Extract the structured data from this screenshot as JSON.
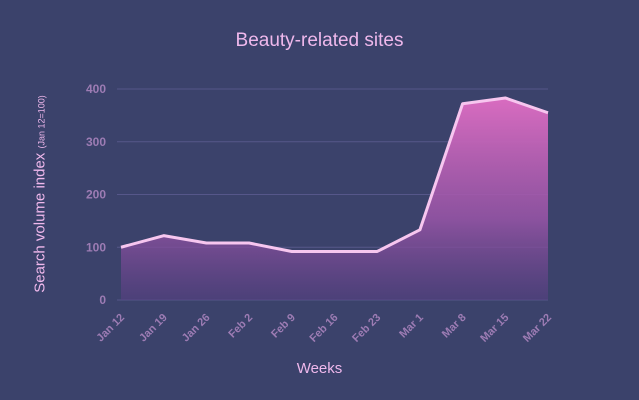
{
  "chart_data": {
    "type": "area",
    "title": "Beauty-related sites",
    "xlabel": "Weeks",
    "ylabel": "Search volume index",
    "ylabel_note": "(Jan 12=100)",
    "categories": [
      "Jan 12",
      "Jan 19",
      "Jan 26",
      "Feb 2",
      "Feb 9",
      "Feb 16",
      "Feb 23",
      "Mar 1",
      "Mar 8",
      "Mar 15",
      "Mar 22"
    ],
    "values": [
      100,
      122,
      108,
      108,
      92,
      92,
      92,
      133,
      372,
      383,
      355
    ],
    "ylim": [
      0,
      400
    ],
    "yticks": [
      0,
      100,
      200,
      300,
      400
    ],
    "grid": true,
    "colors": {
      "background": "#3b426b",
      "line": "#f7c6ef",
      "fill_top": "#d96cc0",
      "fill_bottom": "#5a3f84",
      "grid": "#56578a",
      "tick": "#9d7cb4",
      "text": "#efb8ec"
    }
  }
}
